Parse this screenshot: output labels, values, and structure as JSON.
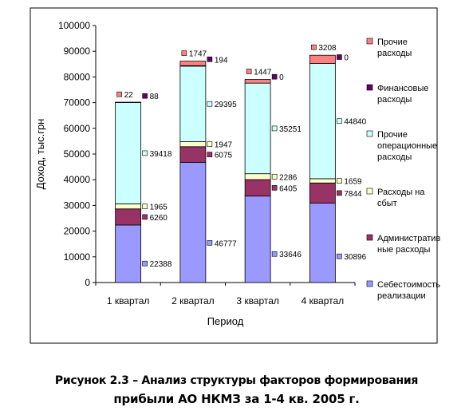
{
  "chart_data": {
    "type": "bar",
    "stacked": true,
    "title": "",
    "xlabel": "Период",
    "ylabel": "Доход, тыс.грн",
    "ylim": [
      0,
      100000
    ],
    "yticks": [
      "0",
      "10000",
      "20000",
      "30000",
      "40000",
      "50000",
      "60000",
      "70000",
      "80000",
      "90000",
      "100000"
    ],
    "ytick_values": [
      0,
      10000,
      20000,
      30000,
      40000,
      50000,
      60000,
      70000,
      80000,
      90000,
      100000
    ],
    "grid": false,
    "legend_position": "right",
    "categories": [
      "1 квартал",
      "2 квартал",
      "3 квартал",
      "4 квартал"
    ],
    "series": [
      {
        "name": "Себестоимость реализации",
        "legend_lines": [
          "Себестоимость",
          "реализации"
        ],
        "color": "#9999ff",
        "values": [
          22388,
          46777,
          33646,
          30896
        ],
        "labels": [
          "22388",
          "46777",
          "33646",
          "30896"
        ]
      },
      {
        "name": "Административные расходы",
        "legend_lines": [
          "Административ",
          "ные расходы"
        ],
        "color": "#993366",
        "values": [
          6260,
          6075,
          6405,
          7844
        ],
        "labels": [
          "6260",
          "6075",
          "6405",
          "7844"
        ]
      },
      {
        "name": "Расходы на сбыт",
        "legend_lines": [
          "Расходы на",
          "сбыт"
        ],
        "color": "#ffffcc",
        "values": [
          1965,
          1947,
          2286,
          1659
        ],
        "labels": [
          "1965",
          "1947",
          "2286",
          "1659"
        ]
      },
      {
        "name": "Прочие операционные расходы",
        "legend_lines": [
          "Прочие",
          "операционные",
          "расходы"
        ],
        "color": "#ccffff",
        "values": [
          39418,
          29395,
          35251,
          44840
        ],
        "labels": [
          "39418",
          "29395",
          "35251",
          "44840"
        ]
      },
      {
        "name": "Финансовые расходы",
        "legend_lines": [
          "Финансовые",
          "расходы"
        ],
        "color": "#660066",
        "values": [
          88,
          194,
          0,
          0
        ],
        "labels": [
          "88",
          "194",
          "0",
          "0"
        ]
      },
      {
        "name": "Прочие расходы",
        "legend_lines": [
          "Прочие",
          "расходы"
        ],
        "color": "#ff8080",
        "values": [
          22,
          1747,
          1447,
          3208
        ],
        "labels": [
          "22",
          "1747",
          "1447",
          "3208"
        ]
      }
    ]
  },
  "caption": {
    "line1": "Рисунок 2.3 – Анализ структуры факторов формирования",
    "line2": "прибыли АО НКМЗ за 1-4 кв. 2005 г."
  }
}
